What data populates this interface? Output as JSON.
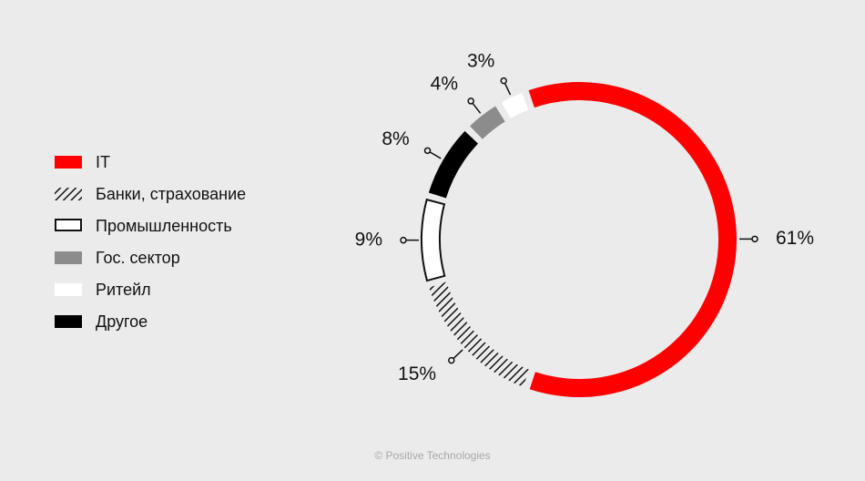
{
  "chart_data": {
    "type": "pie",
    "categories": [
      "IT",
      "Банки, страхование",
      "Промышленность",
      "Другое",
      "Гос. сектор",
      "Ритейл"
    ],
    "values": [
      61,
      15,
      9,
      8,
      4,
      3
    ],
    "value_labels": [
      "61%",
      "15%",
      "9%",
      "8%",
      "4%",
      "3%"
    ],
    "colors": [
      "#ff0000",
      "#111111",
      "#111111",
      "#000000",
      "#8c8c8c",
      "#ffffff"
    ],
    "styles": [
      "solid",
      "hatch",
      "outline",
      "solid",
      "solid",
      "solid"
    ],
    "donut": true
  },
  "copyright": "© Positive Technologies"
}
